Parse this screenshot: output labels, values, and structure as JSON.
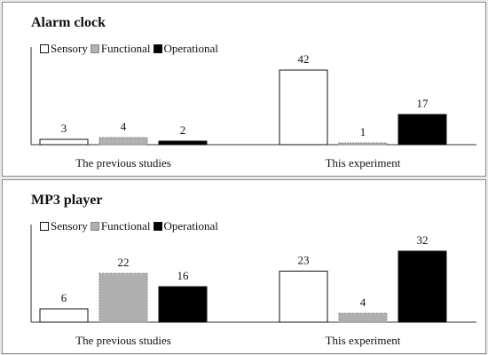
{
  "colors": {
    "sensory": "#ffffff",
    "functional": "#b0b0b0",
    "operational": "#000000",
    "axis": "#333333"
  },
  "chart_data": [
    {
      "type": "bar",
      "title": "Alarm clock",
      "categories": [
        "The previous studies",
        "This experiment"
      ],
      "series": [
        {
          "name": "Sensory",
          "values": [
            3,
            42
          ]
        },
        {
          "name": "Functional",
          "values": [
            4,
            1
          ]
        },
        {
          "name": "Operational",
          "values": [
            2,
            17
          ]
        }
      ],
      "ylim": [
        0,
        50
      ],
      "grid": false,
      "legend": "top-left"
    },
    {
      "type": "bar",
      "title": "MP3 player",
      "categories": [
        "The previous studies",
        "This experiment"
      ],
      "series": [
        {
          "name": "Sensory",
          "values": [
            6,
            23
          ]
        },
        {
          "name": "Functional",
          "values": [
            22,
            4
          ]
        },
        {
          "name": "Operational",
          "values": [
            16,
            32
          ]
        }
      ],
      "ylim": [
        0,
        40
      ],
      "grid": false,
      "legend": "top-left"
    }
  ]
}
